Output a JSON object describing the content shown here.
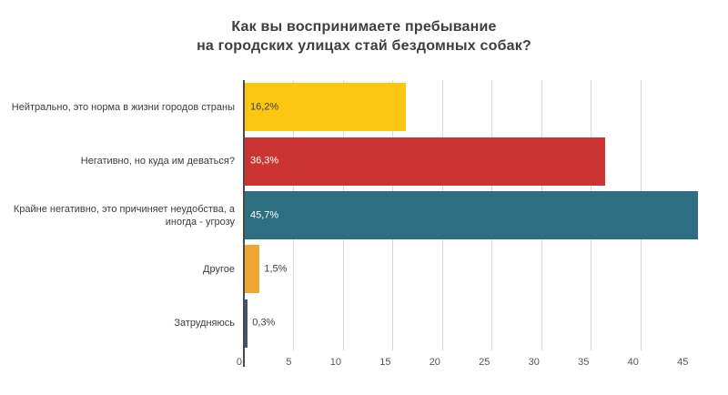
{
  "title": {
    "line1": "Как вы воспринимаете пребывание",
    "line2": "на городских улицах стай бездомных собак?"
  },
  "chart_data": {
    "type": "bar",
    "orientation": "horizontal",
    "title": "Как вы воспринимаете пребывание на городских улицах стай бездомных собак?",
    "categories": [
      "Нейтрально, это норма в жизни городов страны",
      "Негативно, но куда им деваться?",
      "Крайне негативно, это причиняет неудобства, а\nиногда - угрозу",
      "Другое",
      "Затрудняюсь"
    ],
    "values": [
      16.2,
      36.3,
      45.7,
      1.5,
      0.3
    ],
    "value_labels": [
      "16,2%",
      "36,3%",
      "45,7%",
      "1,5%",
      "0,3%"
    ],
    "bar_colors": [
      "#FBC712",
      "#CC3434",
      "#2D6E80",
      "#F0A431",
      "#44546A"
    ],
    "value_label_colors": [
      "#3E3E3E",
      "#FFFFFF",
      "#FFFFFF",
      "#3E3E3E",
      "#3E3E3E"
    ],
    "value_label_inside": [
      true,
      true,
      true,
      false,
      false
    ],
    "xlabel": "",
    "ylabel": "",
    "xlim": [
      0,
      45.7
    ],
    "x_tick_labels": [
      "0",
      "5",
      "10",
      "15",
      "20",
      "25",
      "30",
      "35",
      "40",
      "45"
    ],
    "x_tick_values": [
      0,
      5,
      10,
      15,
      20,
      25,
      30,
      35,
      40,
      45
    ],
    "gridline_values": [
      5,
      10,
      15,
      20,
      25,
      30,
      35,
      40
    ],
    "grid": true,
    "legend": "none",
    "colors": {
      "gridline": "#D9D9D9",
      "axis_line": "#4A4A4A",
      "title_text": "#3E3E3E",
      "category_text": "#3D3D3D",
      "tick_text": "#555555",
      "background": "#FFFFFF"
    }
  }
}
